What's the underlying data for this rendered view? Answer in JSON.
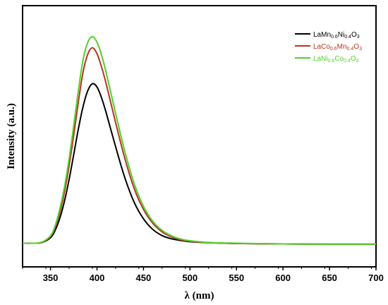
{
  "chart_data": {
    "type": "line",
    "xlabel": "λ (nm)",
    "ylabel": "Intensity (a.u.)",
    "xlim": [
      320,
      700
    ],
    "ylim": [
      0,
      1.06
    ],
    "x_ticks": [
      350,
      400,
      450,
      500,
      550,
      600,
      650,
      700
    ],
    "y_ticks_labeled": false,
    "grid": false,
    "legend_position": "top-right",
    "x": [
      320,
      330,
      340,
      350,
      355,
      360,
      365,
      370,
      375,
      380,
      385,
      390,
      395,
      400,
      405,
      410,
      420,
      430,
      440,
      450,
      460,
      470,
      480,
      490,
      500,
      520,
      550,
      600,
      650,
      700
    ],
    "series": [
      {
        "name": "LaMn0.6Ni0.4O3",
        "legend_parts": [
          [
            "LaMn",
            ""
          ],
          [
            "0.6",
            "sub"
          ],
          [
            "Ni",
            ""
          ],
          [
            "0.4",
            "sub"
          ],
          [
            "O",
            ""
          ],
          [
            "3",
            "sub"
          ]
        ],
        "color": "#000000",
        "values": [
          0.096,
          0.096,
          0.098,
          0.118,
          0.148,
          0.197,
          0.266,
          0.354,
          0.456,
          0.56,
          0.65,
          0.714,
          0.743,
          0.73,
          0.685,
          0.624,
          0.488,
          0.361,
          0.262,
          0.195,
          0.152,
          0.127,
          0.114,
          0.107,
          0.102,
          0.098,
          0.095,
          0.093,
          0.092,
          0.092
        ]
      },
      {
        "name": "LaCo0.6Mn0.4O3",
        "legend_parts": [
          [
            "LaCo",
            ""
          ],
          [
            "0.6",
            "sub"
          ],
          [
            "Mn",
            ""
          ],
          [
            "0.4",
            "sub"
          ],
          [
            "O",
            ""
          ],
          [
            "3",
            "sub"
          ]
        ],
        "color": "#b8341f",
        "values": [
          0.096,
          0.096,
          0.099,
          0.123,
          0.16,
          0.22,
          0.302,
          0.409,
          0.535,
          0.67,
          0.79,
          0.862,
          0.889,
          0.865,
          0.81,
          0.741,
          0.586,
          0.439,
          0.318,
          0.233,
          0.177,
          0.142,
          0.122,
          0.11,
          0.104,
          0.098,
          0.095,
          0.093,
          0.092,
          0.092
        ]
      },
      {
        "name": "LaNi0.6Co0.4O3",
        "legend_parts": [
          [
            "LaNi",
            ""
          ],
          [
            "0.6",
            "sub"
          ],
          [
            "Co",
            ""
          ],
          [
            "0.4",
            "sub"
          ],
          [
            "O",
            ""
          ],
          [
            "3",
            "sub"
          ]
        ],
        "color": "#4fd12a",
        "values": [
          0.096,
          0.096,
          0.099,
          0.126,
          0.167,
          0.234,
          0.323,
          0.438,
          0.574,
          0.716,
          0.84,
          0.91,
          0.934,
          0.912,
          0.858,
          0.786,
          0.623,
          0.467,
          0.338,
          0.246,
          0.185,
          0.148,
          0.126,
          0.113,
          0.106,
          0.099,
          0.096,
          0.093,
          0.092,
          0.092
        ]
      }
    ]
  }
}
